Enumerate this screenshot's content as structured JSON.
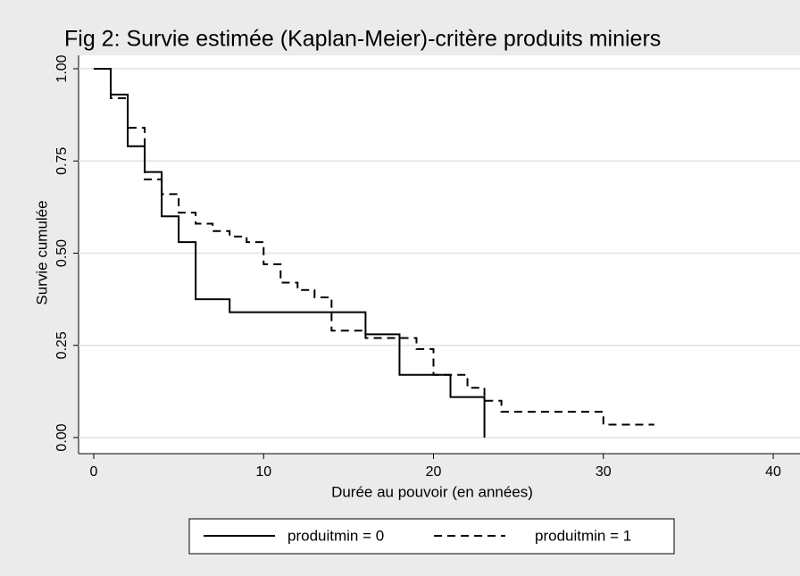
{
  "chart_data": {
    "type": "line",
    "title": "Fig 2: Survie estimée (Kaplan-Meier)-critère produits miniers",
    "x_label": "Durée au pouvoir (en années)",
    "y_label": "Survie cumulée",
    "xlim": [
      0,
      40
    ],
    "ylim": [
      0,
      1
    ],
    "xticks": [
      0,
      10,
      20,
      30,
      40
    ],
    "yticks": [
      {
        "value": 0,
        "label": "0.00"
      },
      {
        "value": 0.25,
        "label": "0.25"
      },
      {
        "value": 0.5,
        "label": "0.50"
      },
      {
        "value": 0.75,
        "label": "0.75"
      },
      {
        "value": 1,
        "label": "1.00"
      }
    ],
    "grid": true,
    "step": true,
    "legend": "bottom",
    "series": [
      {
        "name": "produitmin = 0",
        "color": "#000000",
        "dash": "solid",
        "x": [
          0,
          1,
          2,
          3,
          4,
          5,
          6,
          8,
          16,
          18,
          21,
          23
        ],
        "values": [
          1,
          0.93,
          0.79,
          0.72,
          0.6,
          0.53,
          0.375,
          0.34,
          0.28,
          0.17,
          0.11,
          0
        ]
      },
      {
        "name": "produitmin = 1",
        "color": "#000000",
        "dash": "dashed",
        "x": [
          0,
          1,
          2,
          3,
          4,
          5,
          6,
          7,
          8,
          9,
          10,
          11,
          12,
          13,
          14,
          16,
          19,
          20,
          22,
          23,
          24,
          30,
          33
        ],
        "values": [
          1,
          0.92,
          0.84,
          0.7,
          0.66,
          0.61,
          0.58,
          0.56,
          0.545,
          0.53,
          0.47,
          0.42,
          0.4,
          0.38,
          0.29,
          0.27,
          0.24,
          0.17,
          0.135,
          0.1,
          0.07,
          0.035,
          0.035
        ]
      }
    ]
  }
}
